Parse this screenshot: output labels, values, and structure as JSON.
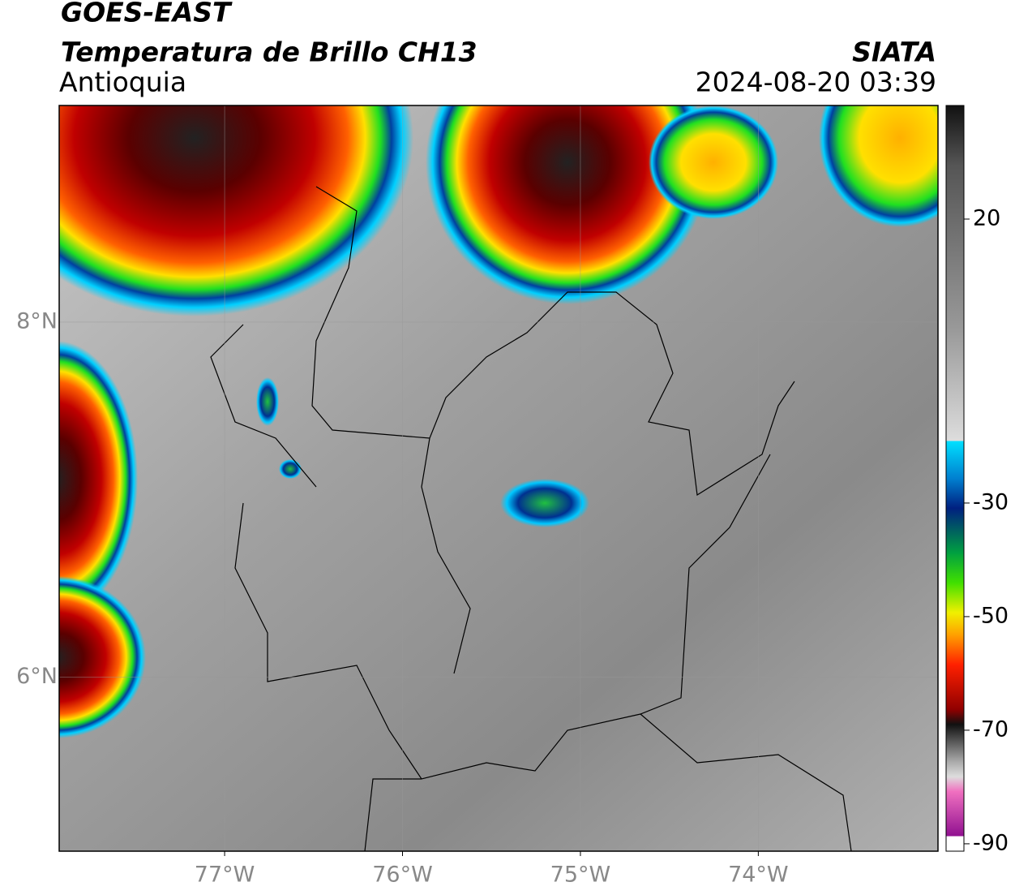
{
  "header": {
    "satellite": "GOES-EAST",
    "product": "Temperatura de Brillo CH13",
    "region": "Antioquia",
    "agency": "SIATA",
    "datetime": "2024-08-20 03:39"
  },
  "map": {
    "xlim": [
      -77.93,
      -72.99
    ],
    "ylim": [
      5.02,
      9.22
    ],
    "xticks": [
      {
        "value": -77,
        "label": "77°W"
      },
      {
        "value": -76,
        "label": "76°W"
      },
      {
        "value": -75,
        "label": "75°W"
      },
      {
        "value": -74,
        "label": "74°W"
      }
    ],
    "yticks": [
      {
        "value": 8,
        "label": "8°N"
      },
      {
        "value": 6,
        "label": "6°N"
      }
    ],
    "grid": true
  },
  "colorbar": {
    "lim": [
      -91.3,
      40
    ],
    "ticks": [
      20,
      -30,
      -50,
      -70,
      -90
    ]
  }
}
